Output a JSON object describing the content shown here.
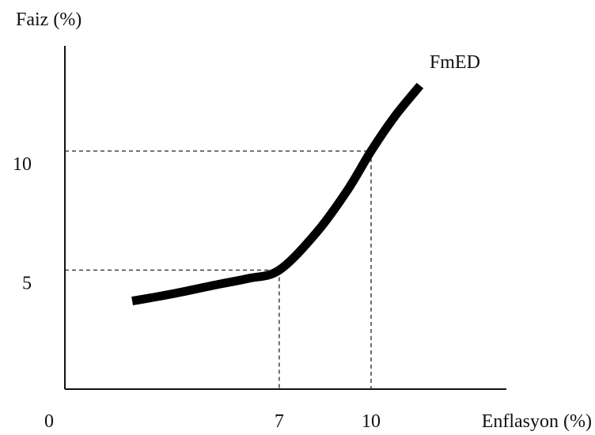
{
  "chart_data": {
    "type": "line",
    "ylabel": "Faiz (%)",
    "xlabel": "Enflasyon (%)",
    "origin_label": "0",
    "xlim": [
      0,
      13.9
    ],
    "ylim": [
      0,
      12
    ],
    "grid": false,
    "x_ticks": [
      {
        "value": 7,
        "label": "7"
      },
      {
        "value": 10,
        "label": "10"
      }
    ],
    "y_ticks": [
      {
        "value": 5,
        "label": "5"
      },
      {
        "value": 10,
        "label": "10"
      }
    ],
    "reference_points": [
      {
        "x": 7,
        "y": 5
      },
      {
        "x": 10,
        "y": 10
      }
    ],
    "series": [
      {
        "name": "FmED",
        "color": "#000000",
        "points": [
          {
            "x": 2.2,
            "y": 3.7
          },
          {
            "x": 3.5,
            "y": 4.0
          },
          {
            "x": 5.0,
            "y": 4.4
          },
          {
            "x": 6.0,
            "y": 4.65
          },
          {
            "x": 7.0,
            "y": 5.0
          },
          {
            "x": 8.2,
            "y": 6.55
          },
          {
            "x": 9.2,
            "y": 8.3
          },
          {
            "x": 10.0,
            "y": 10.0
          },
          {
            "x": 10.8,
            "y": 11.5
          },
          {
            "x": 11.6,
            "y": 12.75
          }
        ]
      }
    ]
  }
}
